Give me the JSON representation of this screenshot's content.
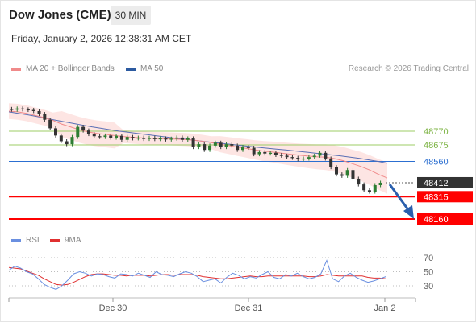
{
  "header": {
    "title": "Dow Jones (CME)",
    "interval": "30 MIN",
    "timestamp": "Friday, January 2, 2026 12:38:31 AM CET"
  },
  "legend": {
    "ma20_label": "MA 20 + Bollinger Bands",
    "ma50_label": "MA 50",
    "credit": "Research © 2026 Trading Central",
    "rsi_label": "RSI",
    "rsi_ma_label": "9MA"
  },
  "colors": {
    "ma20": "#f08a8a",
    "bollinger_fill": "#fde0de",
    "ma50": "#5a6fb5",
    "support_red": "#ff0000",
    "pivot_blue": "#2c6fd1",
    "resistance_green": "#9ccc65",
    "resistance_label": "#7cb342",
    "last_price_bg": "#333333",
    "arrow": "#2a5fad",
    "rsi": "#6a8fe0",
    "rsi_ma": "#e03030"
  },
  "chart_data": [
    {
      "type": "candlestick",
      "ylim": [
        48090,
        48840
      ],
      "x_tick_labels": [
        "Dec 30",
        "Dec 31",
        "Jan 2"
      ],
      "levels": [
        {
          "value": 48770,
          "label": "48770",
          "kind": "resistance"
        },
        {
          "value": 48675,
          "label": "48675",
          "kind": "resistance"
        },
        {
          "value": 48560,
          "label": "48560",
          "kind": "pivot"
        },
        {
          "value": 48412,
          "label": "48412",
          "kind": "last"
        },
        {
          "value": 48315,
          "label": "48315",
          "kind": "support"
        },
        {
          "value": 48160,
          "label": "48160",
          "kind": "support"
        }
      ],
      "close_path": [
        48920,
        48928,
        48922,
        48918,
        48910,
        48890,
        48850,
        48790,
        48740,
        48700,
        48680,
        48730,
        48800,
        48775,
        48750,
        48735,
        48730,
        48740,
        48725,
        48738,
        48710,
        48730,
        48720,
        48725,
        48716,
        48724,
        48715,
        48720,
        48712,
        48718,
        48726,
        48710,
        48720,
        48660,
        48680,
        48640,
        48670,
        48690,
        48660,
        48680,
        48670,
        48640,
        48660,
        48655,
        48610,
        48625,
        48615,
        48620,
        48605,
        48600,
        48590,
        48585,
        48575,
        48580,
        48590,
        48600,
        48620,
        48580,
        48520,
        48470,
        48460,
        48500,
        48440,
        48400,
        48360,
        48350,
        48395,
        48412
      ],
      "ma20_path": [
        48910,
        48905,
        48895,
        48880,
        48865,
        48845,
        48820,
        48800,
        48780,
        48765,
        48755,
        48748,
        48740,
        48733,
        48728,
        48724,
        48721,
        48719,
        48717,
        48715,
        48712,
        48708,
        48700,
        48690,
        48680,
        48670,
        48660,
        48650,
        48640,
        48632,
        48625,
        48618,
        48610,
        48603,
        48597,
        48592,
        48590,
        48580,
        48565,
        48545,
        48525,
        48500,
        48470,
        48445
      ],
      "ma50_path": [
        48905,
        48895,
        48885,
        48873,
        48860,
        48848,
        48836,
        48824,
        48812,
        48800,
        48790,
        48780,
        48770,
        48762,
        48754,
        48746,
        48738,
        48730,
        48722,
        48715,
        48708,
        48700,
        48693,
        48686,
        48679,
        48672,
        48665,
        48658,
        48652,
        48646,
        48640,
        48633,
        48626,
        48619,
        48612,
        48605,
        48598,
        48590,
        48581,
        48571,
        48560,
        48548
      ]
    },
    {
      "type": "line",
      "name": "RSI",
      "ylim": [
        15,
        85
      ],
      "y_tick_labels": [
        "70",
        "50",
        "30"
      ],
      "series": [
        {
          "name": "RSI",
          "values": [
            52,
            58,
            55,
            50,
            47,
            40,
            32,
            28,
            25,
            30,
            38,
            47,
            50,
            48,
            44,
            47,
            46,
            43,
            41,
            47,
            46,
            44,
            48,
            45,
            42,
            50,
            46,
            45,
            43,
            47,
            50,
            48,
            43,
            36,
            38,
            40,
            34,
            42,
            48,
            45,
            40,
            43,
            41,
            46,
            50,
            42,
            40,
            46,
            44,
            48,
            43,
            40,
            42,
            47,
            66,
            40,
            36,
            44,
            48,
            42,
            38,
            35,
            37,
            40,
            43
          ]
        },
        {
          "name": "9MA",
          "values": [
            56,
            55,
            54,
            51,
            48,
            45,
            40,
            36,
            32,
            31,
            32,
            35,
            39,
            43,
            46,
            47,
            47,
            46,
            45,
            45,
            44,
            45,
            45,
            45,
            44,
            45,
            46,
            46,
            45,
            46,
            46,
            46,
            45,
            43,
            42,
            41,
            40,
            40,
            41,
            42,
            43,
            44,
            43,
            43,
            44,
            44,
            44,
            44,
            44,
            44,
            44,
            43,
            43,
            44,
            46,
            45,
            44,
            44,
            44,
            44,
            44,
            42,
            41,
            41,
            40
          ]
        }
      ]
    }
  ]
}
